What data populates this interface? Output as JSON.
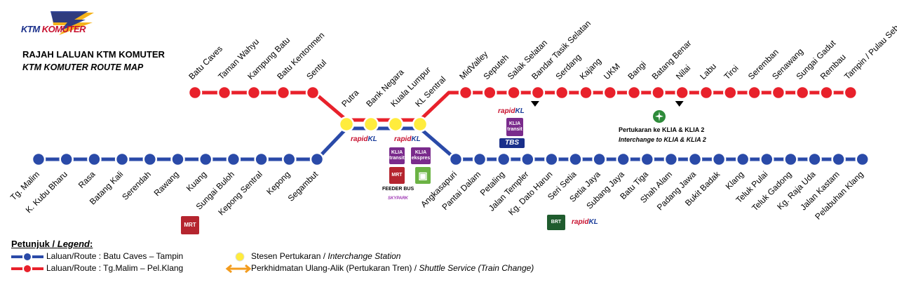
{
  "header": {
    "logo_text_1": "KTM",
    "logo_text_2": "KOMUTER",
    "title_ms": "RAJAH LALUAN KTM KOMUTER",
    "title_en": "KTM KOMUTER ROUTE MAP"
  },
  "colors": {
    "red_line": "#e8212b",
    "blue_line": "#2a4aa8",
    "interchange": "#ffec3d",
    "shuttle": "#f39c1e",
    "mrt": "#b5252f",
    "klia": "#7a2b8c",
    "ktm_blue": "#1a2f8a"
  },
  "interchange_stations": [
    "Putra",
    "Bank Negara",
    "Kuala Lumpur",
    "KL Sentral"
  ],
  "red_west_stations": [
    "Batu Caves",
    "Taman Wahyu",
    "Kampung Batu",
    "Batu Kentonmen",
    "Sentul"
  ],
  "red_east_stations": [
    "MidValley",
    "Seputeh",
    "Salak Selatan",
    "Bandar Tasik Selatan",
    "Serdang",
    "Kajang",
    "UKM",
    "Bangi",
    "Batang Benar",
    "Nilai",
    "Labu",
    "Tiroi",
    "Seremban",
    "Senawang",
    "Sungai Gadut",
    "Rembau",
    "Tampin / Pulau Sebang"
  ],
  "blue_west_stations": [
    "Tg. Malim",
    "K. Kubu Bharu",
    "Rasa",
    "Batang Kali",
    "Serendah",
    "Rawang",
    "Kuang",
    "Sungai Buloh",
    "Kepong Sentral",
    "Kepong",
    "Segambut"
  ],
  "blue_east_stations": [
    "Angkasapuri",
    "Pantai Dalam",
    "Petaling",
    "Jalan Templer",
    "Kg. Dato Harun",
    "Seri Setia",
    "Setia Jaya",
    "Subang Jaya",
    "Batu Tiga",
    "Shah Alam",
    "Padang Jawa",
    "Bukit Badak",
    "Klang",
    "Teluk Pulai",
    "Teluk Gadong",
    "Kg. Raja Uda",
    "Jalan Kastam",
    "Pelabuhan Klang"
  ],
  "badges": {
    "rapid_kl": "rapidKL",
    "rapid_kl_a": "rapid",
    "rapid_kl_b": "KL",
    "mrt": "MRT",
    "klia_transit": "KLIA transit",
    "klia_ekspres": "KLIA ekspres",
    "tbs": "TBS",
    "feeder_bus": "FEEDER BUS",
    "skyline": "SKYPARK",
    "brt": "BRT",
    "interchange_ms": "Pertukaran ke KLIA  & KLIA 2",
    "interchange_en": "Interchange to KLIA & KLIA 2"
  },
  "legend": {
    "title_ms": "Petunjuk",
    "title_en": "Legend",
    "route1": "Laluan/Route : Batu Caves –  Tampin",
    "route2": "Laluan/Route : Tg.Malim – Pel.Klang",
    "interchange_ms": "Stesen Pertukaran / ",
    "interchange_en": "Interchange Station",
    "shuttle_ms": "Perkhidmatan Ulang-Alik (Pertukaran Tren) / ",
    "shuttle_en": "Shuttle Service (Train Change)"
  }
}
